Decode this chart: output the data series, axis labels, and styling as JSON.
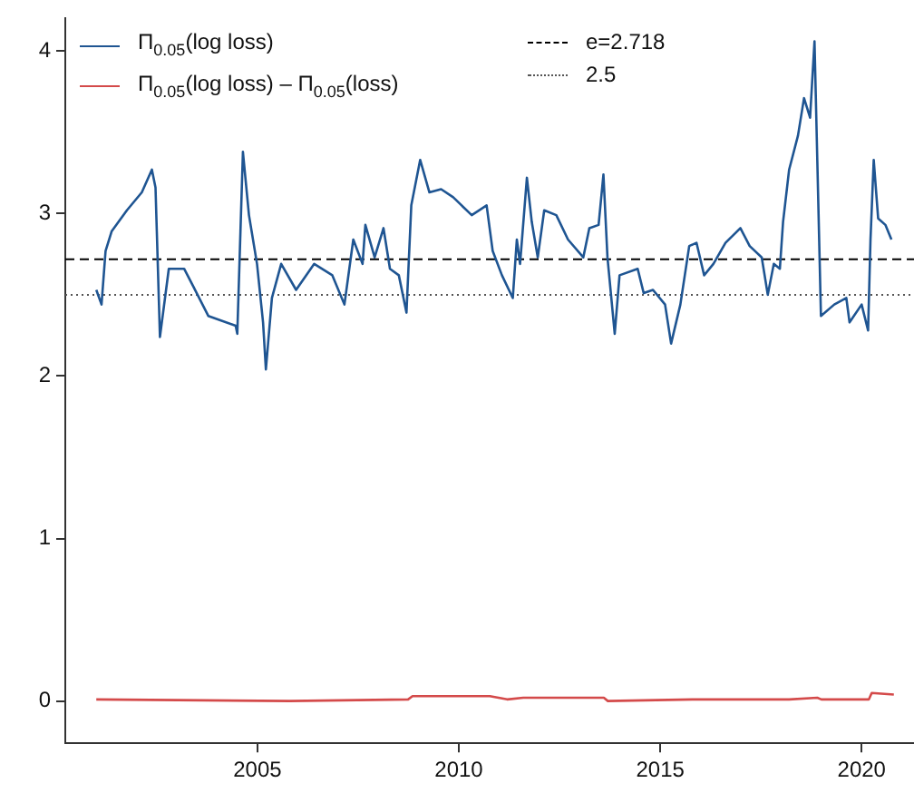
{
  "chart_data": {
    "type": "line",
    "xlim": [
      2000.23,
      2021.3
    ],
    "xticks": [
      2005,
      2010,
      2015,
      2020
    ],
    "ylim": [
      -0.26,
      4.2
    ],
    "yticks": [
      0,
      1,
      2,
      3,
      4
    ],
    "grid": false,
    "legend": "top left",
    "marker": "none",
    "line_style": "solid",
    "series": [
      {
        "name": "Π$_{0.05}$(log loss)",
        "color": "#1f5592",
        "x": [
          2001.0,
          2001.13,
          2001.23,
          2001.38,
          2001.76,
          2002.13,
          2002.38,
          2002.47,
          2002.58,
          2002.8,
          2003.18,
          2003.41,
          2003.78,
          2004.46,
          2004.5,
          2004.64,
          2004.79,
          2004.99,
          2005.14,
          2005.21,
          2005.36,
          2005.59,
          2005.96,
          2006.41,
          2006.86,
          2007.16,
          2007.38,
          2007.61,
          2007.68,
          2007.91,
          2008.13,
          2008.29,
          2008.51,
          2008.7,
          2008.82,
          2009.04,
          2009.27,
          2009.56,
          2009.86,
          2010.32,
          2010.69,
          2010.84,
          2011.07,
          2011.34,
          2011.44,
          2011.52,
          2011.69,
          2011.81,
          2011.96,
          2012.12,
          2012.42,
          2012.71,
          2013.09,
          2013.24,
          2013.47,
          2013.59,
          2013.69,
          2013.87,
          2013.99,
          2014.44,
          2014.59,
          2014.82,
          2015.12,
          2015.27,
          2015.5,
          2015.72,
          2015.9,
          2016.09,
          2016.32,
          2016.62,
          2016.99,
          2017.22,
          2017.52,
          2017.67,
          2017.82,
          2017.97,
          2018.05,
          2018.2,
          2018.42,
          2018.57,
          2018.72,
          2018.83,
          2018.9,
          2018.99,
          2019.32,
          2019.62,
          2019.7,
          2020.0,
          2020.16,
          2020.22,
          2020.3,
          2020.41,
          2020.59,
          2020.74
        ],
        "values": [
          2.53,
          2.44,
          2.77,
          2.89,
          3.02,
          3.13,
          3.27,
          3.16,
          2.24,
          2.66,
          2.66,
          2.55,
          2.37,
          2.31,
          2.26,
          3.38,
          2.99,
          2.69,
          2.33,
          2.04,
          2.48,
          2.69,
          2.53,
          2.69,
          2.62,
          2.44,
          2.84,
          2.69,
          2.93,
          2.73,
          2.91,
          2.66,
          2.62,
          2.39,
          3.05,
          3.33,
          3.13,
          3.15,
          3.1,
          2.99,
          3.05,
          2.77,
          2.62,
          2.48,
          2.84,
          2.69,
          3.22,
          2.95,
          2.73,
          3.02,
          2.99,
          2.84,
          2.73,
          2.91,
          2.93,
          3.24,
          2.73,
          2.26,
          2.62,
          2.66,
          2.51,
          2.53,
          2.44,
          2.2,
          2.44,
          2.8,
          2.82,
          2.62,
          2.69,
          2.82,
          2.91,
          2.8,
          2.73,
          2.5,
          2.69,
          2.66,
          2.95,
          3.27,
          3.48,
          3.71,
          3.59,
          4.06,
          3.32,
          2.37,
          2.44,
          2.48,
          2.33,
          2.44,
          2.28,
          2.84,
          3.33,
          2.97,
          2.93,
          2.84
        ]
      },
      {
        "name": "Π$_{0.05}$(log loss) – Π$_{0.05}$(loss)",
        "color": "#d44a4a",
        "x": [
          2001.0,
          2005.8,
          2008.74,
          2008.85,
          2010.77,
          2011.2,
          2011.6,
          2013.6,
          2013.7,
          2015.8,
          2018.2,
          2018.9,
          2019.0,
          2020.18,
          2020.25,
          2020.8
        ],
        "values": [
          0.01,
          0,
          0.01,
          0.03,
          0.03,
          0.01,
          0.02,
          0.02,
          0,
          0.01,
          0.01,
          0.02,
          0.01,
          0.01,
          0.05,
          0.04
        ]
      }
    ],
    "ref_lines": [
      {
        "axis": "y",
        "value": 2.718,
        "label": "e=2.718",
        "color": "#000000",
        "line_style": "dashed"
      },
      {
        "axis": "y",
        "value": 2.5,
        "label": "2.5",
        "color": "#555555",
        "line_style": "dotted"
      }
    ]
  }
}
